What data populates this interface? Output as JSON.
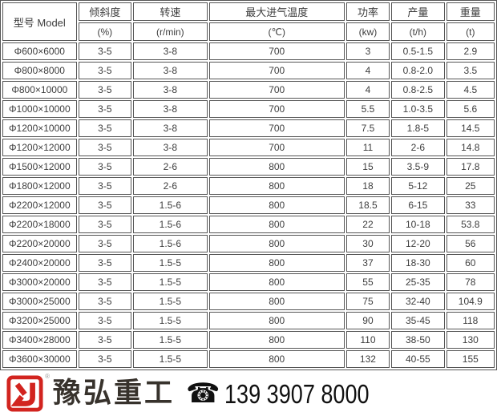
{
  "colors": {
    "grid_line": "#565656",
    "table_text": "#3d3d3d",
    "brand_red": "#d2241f",
    "brand_text": "#37322c",
    "phone_text": "#111111"
  },
  "table": {
    "header": {
      "model": "型号 Model",
      "columns": [
        {
          "label": "倾斜度",
          "unit": "(%)"
        },
        {
          "label": "转速",
          "unit": "(r/min)"
        },
        {
          "label": "最大进气温度",
          "unit": "(℃)"
        },
        {
          "label": "功率",
          "unit": "(kw)"
        },
        {
          "label": "产量",
          "unit": "(t/h)"
        },
        {
          "label": "重量",
          "unit": "(t)"
        }
      ]
    },
    "rows": [
      [
        "Φ600×6000",
        "3-5",
        "3-8",
        "700",
        "3",
        "0.5-1.5",
        "2.9"
      ],
      [
        "Φ800×8000",
        "3-5",
        "3-8",
        "700",
        "4",
        "0.8-2.0",
        "3.5"
      ],
      [
        "Φ800×10000",
        "3-5",
        "3-8",
        "700",
        "4",
        "0.8-2.5",
        "4.5"
      ],
      [
        "Φ1000×10000",
        "3-5",
        "3-8",
        "700",
        "5.5",
        "1.0-3.5",
        "5.6"
      ],
      [
        "Φ1200×10000",
        "3-5",
        "3-8",
        "700",
        "7.5",
        "1.8-5",
        "14.5"
      ],
      [
        "Φ1200×12000",
        "3-5",
        "3-8",
        "700",
        "11",
        "2-6",
        "14.8"
      ],
      [
        "Φ1500×12000",
        "3-5",
        "2-6",
        "800",
        "15",
        "3.5-9",
        "17.8"
      ],
      [
        "Φ1800×12000",
        "3-5",
        "2-6",
        "800",
        "18",
        "5-12",
        "25"
      ],
      [
        "Φ2200×12000",
        "3-5",
        "1.5-6",
        "800",
        "18.5",
        "6-15",
        "33"
      ],
      [
        "Φ2200×18000",
        "3-5",
        "1.5-6",
        "800",
        "22",
        "10-18",
        "53.8"
      ],
      [
        "Φ2200×20000",
        "3-5",
        "1.5-6",
        "800",
        "30",
        "12-20",
        "56"
      ],
      [
        "Φ2400×20000",
        "3-5",
        "1.5-5",
        "800",
        "37",
        "18-30",
        "60"
      ],
      [
        "Φ3000×20000",
        "3-5",
        "1.5-5",
        "800",
        "55",
        "25-35",
        "78"
      ],
      [
        "Φ3000×25000",
        "3-5",
        "1.5-5",
        "800",
        "75",
        "32-40",
        "104.9"
      ],
      [
        "Φ3200×25000",
        "3-5",
        "1.5-5",
        "800",
        "90",
        "35-45",
        "118"
      ],
      [
        "Φ3400×28000",
        "3-5",
        "1.5-5",
        "800",
        "110",
        "38-50",
        "130"
      ],
      [
        "Φ3600×30000",
        "3-5",
        "1.5-5",
        "800",
        "132",
        "40-55",
        "155"
      ]
    ]
  },
  "footer": {
    "brand": "豫弘重工",
    "trademark": "®",
    "phone_icon": "☎",
    "phone": "139 3907 8000"
  }
}
